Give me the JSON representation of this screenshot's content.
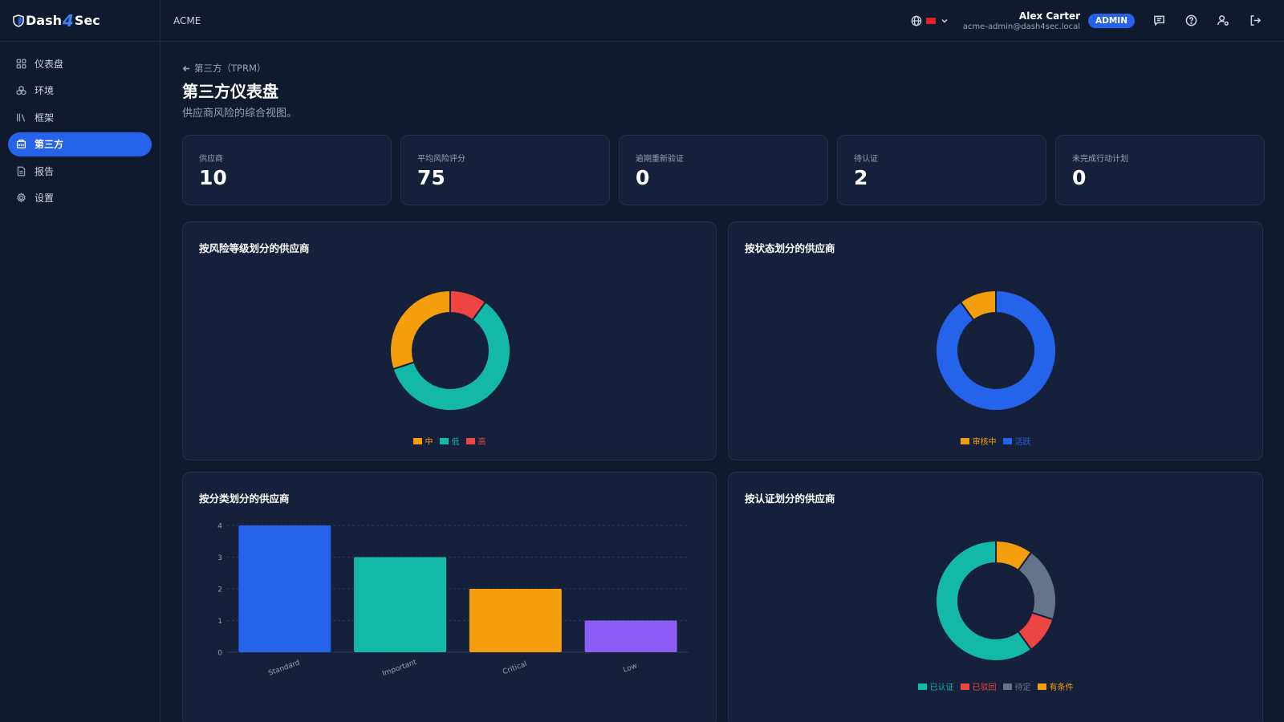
{
  "brand": {
    "name_left": "Dash",
    "name_mid": "4",
    "name_right": "Sec"
  },
  "sidebar": {
    "items": [
      {
        "label": "仪表盘",
        "icon": "grid-icon"
      },
      {
        "label": "环境",
        "icon": "boxes-icon"
      },
      {
        "label": "框架",
        "icon": "library-icon"
      },
      {
        "label": "第三方",
        "icon": "building-icon"
      },
      {
        "label": "报告",
        "icon": "file-icon"
      },
      {
        "label": "设置",
        "icon": "gear-icon"
      }
    ],
    "active": "第三方"
  },
  "header": {
    "org": "ACME",
    "user_name": "Alex Carter",
    "user_email": "acme-admin@dash4sec.local",
    "role_badge": "ADMIN"
  },
  "page": {
    "breadcrumb": "第三方（TPRM）",
    "title": "第三方仪表盘",
    "subtitle": "供应商风险的综合视图。"
  },
  "stats": [
    {
      "label": "供应商",
      "value": "10"
    },
    {
      "label": "平均风险评分",
      "value": "75"
    },
    {
      "label": "逾期重新验证",
      "value": "0"
    },
    {
      "label": "待认证",
      "value": "2"
    },
    {
      "label": "未完成行动计划",
      "value": "0"
    }
  ],
  "colors": {
    "teal": "#14b8a6",
    "red": "#ef4444",
    "orange": "#f59e0b",
    "blue": "#2563eb",
    "purple": "#8b5cf6",
    "gray": "#64748b"
  },
  "chart_data": [
    {
      "type": "pie",
      "title": "按风险等级划分的供应商",
      "labels": [
        "中",
        "低",
        "高"
      ],
      "values": [
        3,
        6,
        1
      ],
      "colors": [
        "#f59e0b",
        "#14b8a6",
        "#ef4444"
      ],
      "legend": "bottom"
    },
    {
      "type": "pie",
      "title": "按状态划分的供应商",
      "labels": [
        "审核中",
        "活跃"
      ],
      "values": [
        1,
        9
      ],
      "colors": [
        "#f59e0b",
        "#2563eb"
      ],
      "legend": "bottom"
    },
    {
      "type": "bar",
      "title": "按分类划分的供应商",
      "categories": [
        "Standard",
        "Important",
        "Critical",
        "Low"
      ],
      "values": [
        4,
        3,
        2,
        1
      ],
      "colors": [
        "#2563eb",
        "#14b8a6",
        "#f59e0b",
        "#8b5cf6"
      ],
      "ylim": [
        0,
        4
      ],
      "yticks": [
        "0",
        "1",
        "2",
        "3",
        "4"
      ],
      "grid": true
    },
    {
      "type": "pie",
      "title": "按认证划分的供应商",
      "labels": [
        "已认证",
        "已驳回",
        "待定",
        "有条件"
      ],
      "values": [
        6,
        1,
        2,
        1
      ],
      "colors": [
        "#14b8a6",
        "#ef4444",
        "#64748b",
        "#f59e0b"
      ],
      "legend": "bottom"
    }
  ]
}
